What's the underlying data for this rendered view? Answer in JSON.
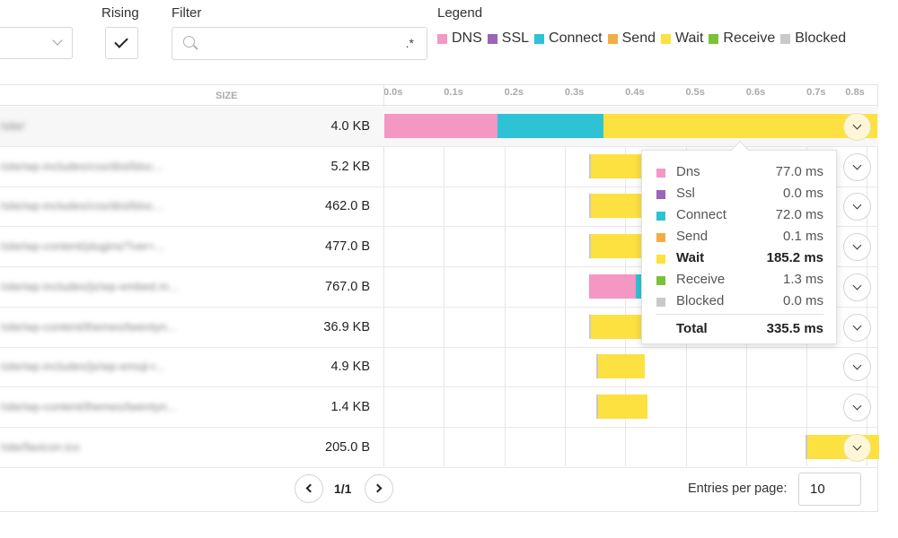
{
  "controls": {
    "rising_label": "Rising",
    "filter_label": "Filter",
    "filter_value": "",
    "filter_regex": ".*",
    "legend_label": "Legend",
    "rising_checked": true
  },
  "colors": {
    "dns": "#f497c3",
    "ssl": "#9b64b8",
    "connect": "#2ec3d4",
    "send": "#f2ad45",
    "wait": "#fde140",
    "receive": "#7cc13a",
    "blocked": "#c9c9c9"
  },
  "legend": [
    {
      "label": "DNS",
      "color": "#f497c3"
    },
    {
      "label": "SSL",
      "color": "#9b64b8"
    },
    {
      "label": "Connect",
      "color": "#2ec3d4"
    },
    {
      "label": "Send",
      "color": "#f2ad45"
    },
    {
      "label": "Wait",
      "color": "#fde140"
    },
    {
      "label": "Receive",
      "color": "#7cc13a"
    },
    {
      "label": "Blocked",
      "color": "#c9c9c9"
    }
  ],
  "table": {
    "size_header": "SIZE",
    "ticks": [
      "0.0s",
      "0.1s",
      "0.2s",
      "0.3s",
      "0.4s",
      "0.5s",
      "0.6s",
      "0.7s",
      "0.8s"
    ],
    "rows": [
      {
        "url": "/site/",
        "size": "4.0 KB"
      },
      {
        "url": "/site/wp-includes/css/dist/bloc...",
        "size": "5.2 KB"
      },
      {
        "url": "/site/wp-includes/css/dist/bloc...",
        "size": "462.0 B"
      },
      {
        "url": "/site/wp-content/plugins/?ver=...",
        "size": "477.0 B"
      },
      {
        "url": "/site/wp-includes/js/wp-embed.m...",
        "size": "767.0 B"
      },
      {
        "url": "/site/wp-content/themes/twentyn...",
        "size": "36.9 KB"
      },
      {
        "url": "/site/wp-includes/js/wp-emoji-r...",
        "size": "4.9 KB"
      },
      {
        "url": "/site/wp-content/themes/twentyn...",
        "size": "1.4 KB"
      },
      {
        "url": "/site/favicon.ico",
        "size": "205.0 B"
      }
    ]
  },
  "tooltip": {
    "rows": [
      {
        "name": "Dns",
        "value": "77.0 ms",
        "color": "#f497c3"
      },
      {
        "name": "Ssl",
        "value": "0.0 ms",
        "color": "#9b64b8"
      },
      {
        "name": "Connect",
        "value": "72.0 ms",
        "color": "#2ec3d4"
      },
      {
        "name": "Send",
        "value": "0.1 ms",
        "color": "#f2ad45"
      },
      {
        "name": "Wait",
        "value": "185.2 ms",
        "color": "#fde140"
      },
      {
        "name": "Receive",
        "value": "1.3 ms",
        "color": "#7cc13a"
      },
      {
        "name": "Blocked",
        "value": "0.0 ms",
        "color": "#c9c9c9"
      }
    ],
    "total_label": "Total",
    "total_value": "335.5 ms"
  },
  "pagination": {
    "page": "1/1",
    "entries_label": "Entries per page:",
    "entries_value": "10"
  }
}
